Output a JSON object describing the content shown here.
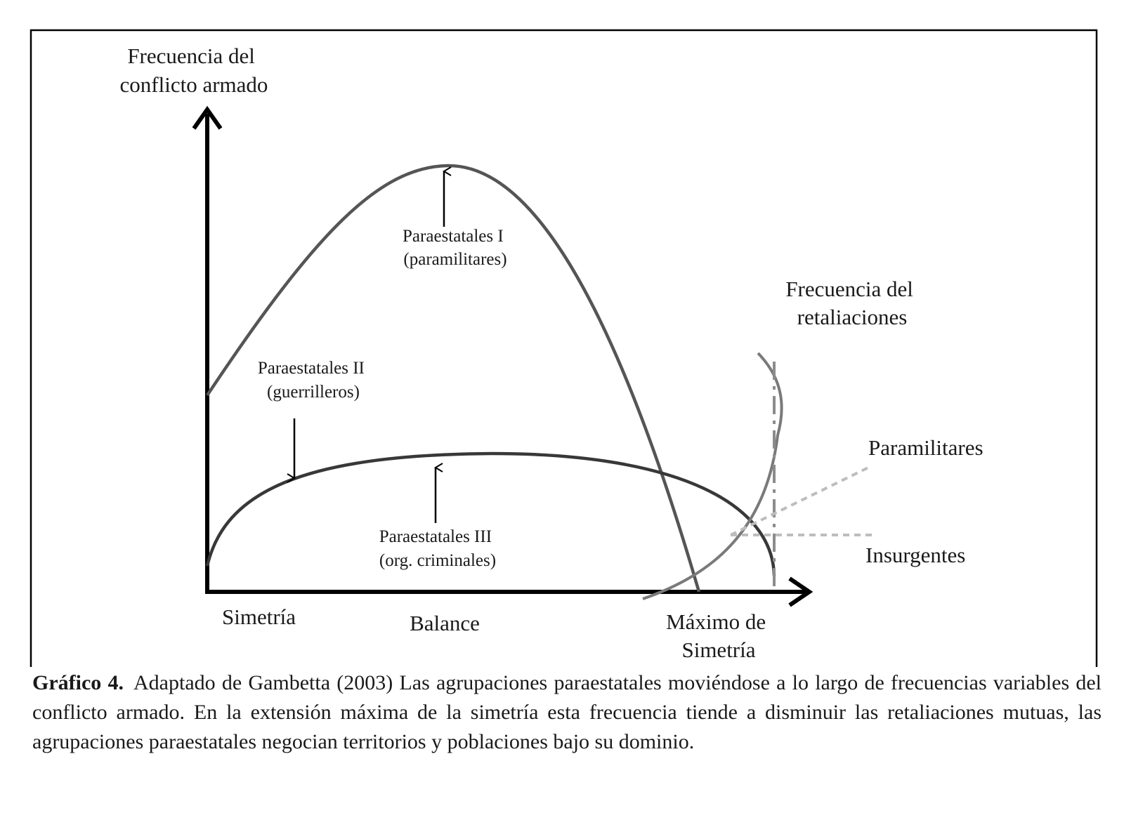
{
  "diagram": {
    "y_axis_label": [
      "Frecuencia del",
      "conflicto armado"
    ],
    "x_axis_labels": {
      "left": "Simetría",
      "middle": "Balance",
      "right": [
        "Máximo de",
        "Simetría"
      ]
    },
    "curves": {
      "paraestatales_1": [
        "Paraestatales I",
        "(paramilitares)"
      ],
      "paraestatales_2": [
        "Paraestatales II",
        "(guerrilleros)"
      ],
      "paraestatales_3": [
        "Paraestatales III",
        "(org. criminales)"
      ]
    },
    "retaliation_label": [
      "Frecuencia del",
      "retaliaciones"
    ],
    "line_labels": {
      "paramilitares": "Paramilitares",
      "insurgentes": "Insurgentes"
    },
    "colors": {
      "axis": "#000000",
      "curve_1": "#555555",
      "curve_3": "#383838",
      "retaliation_curve": "#7a7a7a",
      "dashed": "#bdbdbd",
      "dash_dot": "#8c8c8c"
    }
  },
  "caption": {
    "label": "Gráfico 4.",
    "text": "Adaptado de Gambetta (2003) Las agrupaciones paraestatales moviéndose a lo largo de frecuencias variables del conflicto armado. En la extensión máxima de la simetría esta frecuencia tiende a disminuir las retaliaciones mutuas, las agrupaciones paraestatales negocian territorios y poblaciones bajo su dominio."
  }
}
